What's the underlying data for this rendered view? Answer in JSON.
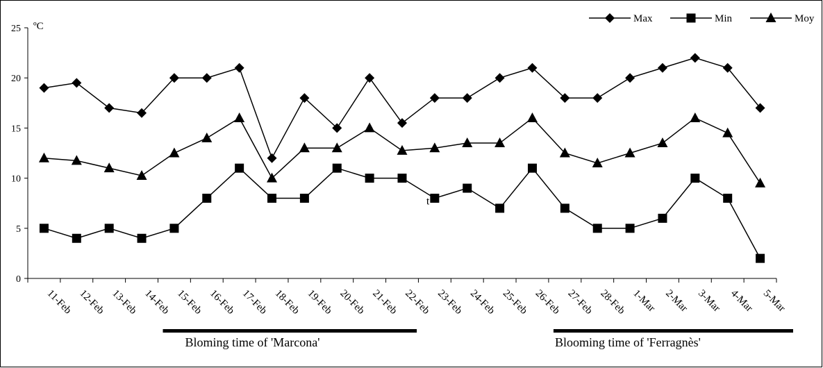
{
  "chart_data": {
    "type": "line",
    "title": "",
    "xlabel": "",
    "ylabel": "",
    "unit_label": "ºC",
    "ylim": [
      0,
      25
    ],
    "yticks": [
      0,
      5,
      10,
      15,
      20,
      25
    ],
    "grid": false,
    "legend_position": "top-right",
    "categories": [
      "11-Feb",
      "12-Feb",
      "13-Feb",
      "14-Feb",
      "15-Feb",
      "16-Feb",
      "17-Feb",
      "18-Feb",
      "19-Feb",
      "20-Feb",
      "21-Feb",
      "22-Feb",
      "23-Feb",
      "24-Feb",
      "25-Feb",
      "26-Feb",
      "27-Feb",
      "28-Feb",
      "1-Mar",
      "2-Mar",
      "3-Mar",
      "4-Mar",
      "5-Mar"
    ],
    "series": [
      {
        "name": "Max",
        "marker": "diamond",
        "color": "#000000",
        "values": [
          19,
          19.5,
          17,
          16.5,
          20,
          20,
          21,
          12,
          18,
          15,
          20,
          15.5,
          18,
          18,
          20,
          21,
          18,
          18,
          20,
          21,
          22,
          21,
          17
        ]
      },
      {
        "name": "Min",
        "marker": "square",
        "color": "#000000",
        "values": [
          5,
          4,
          5,
          4,
          5,
          8,
          11,
          8,
          8,
          11,
          10,
          10,
          8,
          9,
          7,
          11,
          7,
          5,
          5,
          6,
          10,
          8,
          2
        ]
      },
      {
        "name": "Moy",
        "marker": "triangle",
        "color": "#000000",
        "values": [
          12,
          11.75,
          11,
          10.25,
          12.5,
          14,
          16,
          10,
          13,
          13,
          15,
          12.75,
          13,
          13.5,
          13.5,
          16,
          12.5,
          11.5,
          12.5,
          13.5,
          16,
          14.5,
          9.5
        ]
      }
    ],
    "annotations": [
      {
        "text": "t",
        "category": "23-Feb",
        "value": 7.5
      }
    ],
    "bloom_periods": [
      {
        "label": "Bloming time of  'Marcona'",
        "from": "15-Feb",
        "to": "22-Feb"
      },
      {
        "label": "Blooming time of 'Ferragnès'",
        "from": "27-Feb",
        "to": "5-Mar"
      }
    ]
  }
}
